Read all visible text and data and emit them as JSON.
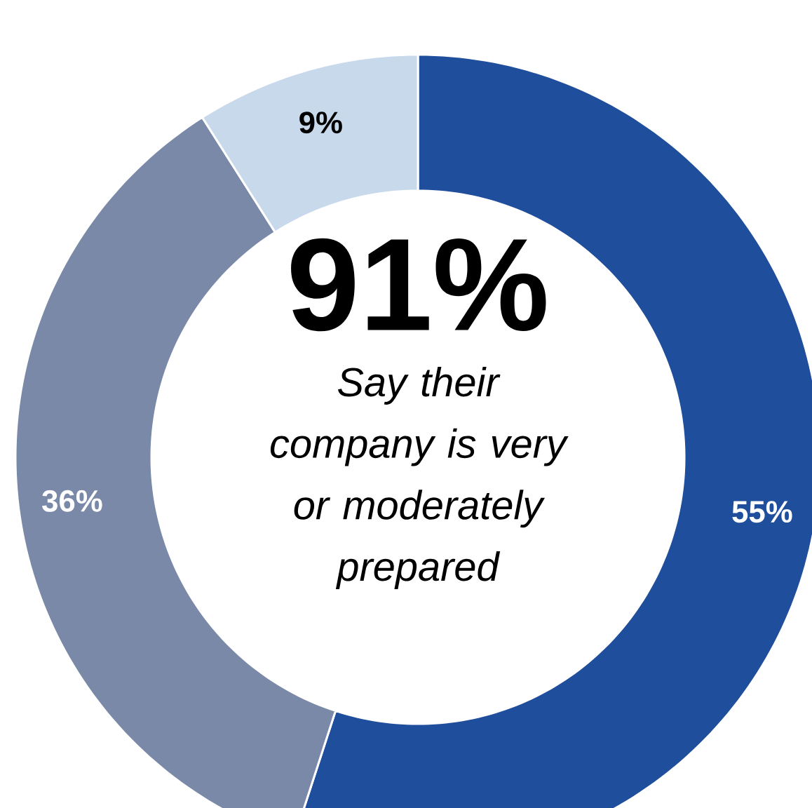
{
  "chart_data": {
    "type": "donut",
    "categories": [
      null,
      null,
      null
    ],
    "values": [
      55,
      36,
      9
    ],
    "colors": [
      "#1f4e9c",
      "#7a89a8",
      "#c8d9ec"
    ],
    "value_labels": [
      "55%",
      "36%",
      "9%"
    ],
    "annotations": [
      "91%",
      "Say their company is very or moderately prepared"
    ]
  }
}
